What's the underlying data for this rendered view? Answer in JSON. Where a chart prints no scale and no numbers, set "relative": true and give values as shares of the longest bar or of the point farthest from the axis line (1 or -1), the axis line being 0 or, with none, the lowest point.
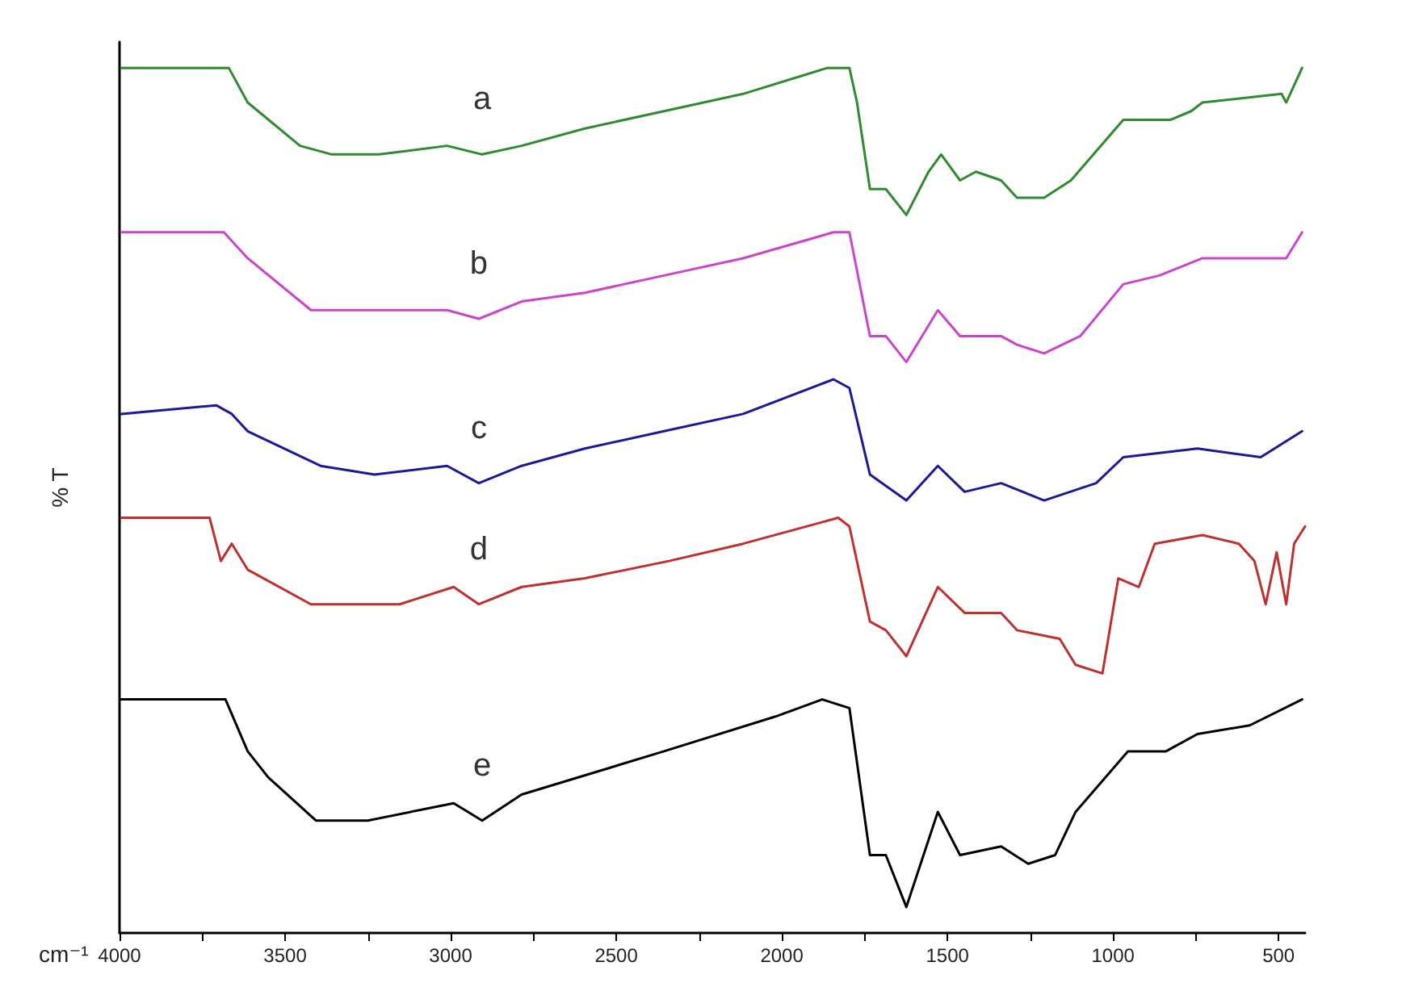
{
  "chart_data": {
    "type": "line",
    "relative": true,
    "xlabel": "cm⁻¹",
    "ylabel": "% T",
    "legend": false,
    "grid": false,
    "marker": "none",
    "line_style": "solid",
    "xlim": [
      4000,
      420
    ],
    "xticks": [
      4000,
      {
        "value": 3750,
        "label": null
      },
      3500,
      {
        "value": 3250,
        "label": null
      },
      3000,
      {
        "value": 2750,
        "label": null
      },
      2500,
      {
        "value": 2250,
        "label": null
      },
      2000,
      {
        "value": 1750,
        "label": null
      },
      1500,
      {
        "value": 1250,
        "label": null
      },
      1000,
      {
        "value": 750,
        "label": null
      },
      500
    ],
    "series": [
      {
        "name": "a",
        "color": "#2e8b2e",
        "x": [
          3995,
          3670,
          3613,
          3455,
          3359,
          3216,
          3011,
          2905,
          2786,
          2595,
          2356,
          2117,
          1863,
          1796,
          1773,
          1734,
          1686,
          1624,
          1557,
          1519,
          1462,
          1414,
          1338,
          1290,
          1208,
          1127,
          969,
          826,
          764,
          730,
          491,
          477,
          429
        ],
        "values": [
          1.0,
          1.0,
          0.96,
          0.91,
          0.9,
          0.9,
          0.91,
          0.9,
          0.91,
          0.93,
          0.95,
          0.97,
          1.0,
          1.0,
          0.96,
          0.86,
          0.86,
          0.83,
          0.88,
          0.9,
          0.87,
          0.88,
          0.87,
          0.85,
          0.85,
          0.87,
          0.94,
          0.94,
          0.95,
          0.96,
          0.97,
          0.96,
          1.0
        ]
      },
      {
        "name": "b",
        "color": "#cc44cc",
        "x": [
          3995,
          3685,
          3613,
          3422,
          3264,
          3011,
          2915,
          2786,
          2595,
          2356,
          2117,
          1844,
          1796,
          1734,
          1686,
          1624,
          1529,
          1462,
          1338,
          1290,
          1208,
          1099,
          969,
          860,
          730,
          491,
          477,
          429
        ],
        "values": [
          0.81,
          0.81,
          0.78,
          0.72,
          0.72,
          0.72,
          0.71,
          0.73,
          0.74,
          0.76,
          0.78,
          0.81,
          0.81,
          0.69,
          0.69,
          0.66,
          0.72,
          0.69,
          0.69,
          0.68,
          0.67,
          0.69,
          0.75,
          0.76,
          0.78,
          0.78,
          0.78,
          0.81
        ]
      },
      {
        "name": "c",
        "color": "#1a1a99",
        "x": [
          3995,
          3708,
          3661,
          3613,
          3393,
          3230,
          3011,
          2915,
          2786,
          2595,
          2356,
          2117,
          1844,
          1796,
          1734,
          1624,
          1529,
          1448,
          1338,
          1208,
          1051,
          969,
          745,
          554,
          429
        ],
        "values": [
          0.6,
          0.61,
          0.6,
          0.58,
          0.54,
          0.53,
          0.54,
          0.52,
          0.54,
          0.56,
          0.58,
          0.6,
          0.64,
          0.63,
          0.53,
          0.5,
          0.54,
          0.51,
          0.52,
          0.5,
          0.52,
          0.55,
          0.56,
          0.55,
          0.58
        ]
      },
      {
        "name": "d",
        "color": "#c0302f",
        "x": [
          3995,
          3728,
          3694,
          3661,
          3613,
          3422,
          3154,
          2991,
          2915,
          2786,
          2595,
          2341,
          2117,
          1830,
          1796,
          1734,
          1686,
          1624,
          1529,
          1448,
          1338,
          1290,
          1161,
          1113,
          1032,
          984,
          922,
          874,
          730,
          620,
          573,
          539,
          506,
          477,
          453,
          420
        ],
        "values": [
          0.48,
          0.48,
          0.43,
          0.45,
          0.42,
          0.38,
          0.38,
          0.4,
          0.38,
          0.4,
          0.41,
          0.43,
          0.45,
          0.48,
          0.47,
          0.36,
          0.35,
          0.32,
          0.4,
          0.37,
          0.37,
          0.35,
          0.34,
          0.31,
          0.3,
          0.41,
          0.4,
          0.45,
          0.46,
          0.45,
          0.43,
          0.38,
          0.44,
          0.38,
          0.45,
          0.47
        ]
      },
      {
        "name": "e",
        "color": "#000000",
        "x": [
          3995,
          3756,
          3680,
          3613,
          3551,
          3407,
          3250,
          2991,
          2905,
          2786,
          2356,
          2021,
          1878,
          1796,
          1734,
          1686,
          1624,
          1529,
          1462,
          1338,
          1256,
          1175,
          1113,
          955,
          840,
          745,
          587,
          429
        ],
        "values": [
          0.27,
          0.27,
          0.27,
          0.21,
          0.18,
          0.13,
          0.13,
          0.15,
          0.13,
          0.16,
          0.21,
          0.25,
          0.27,
          0.26,
          0.09,
          0.09,
          0.03,
          0.14,
          0.09,
          0.1,
          0.08,
          0.09,
          0.14,
          0.21,
          0.21,
          0.23,
          0.24,
          0.27
        ]
      }
    ]
  }
}
